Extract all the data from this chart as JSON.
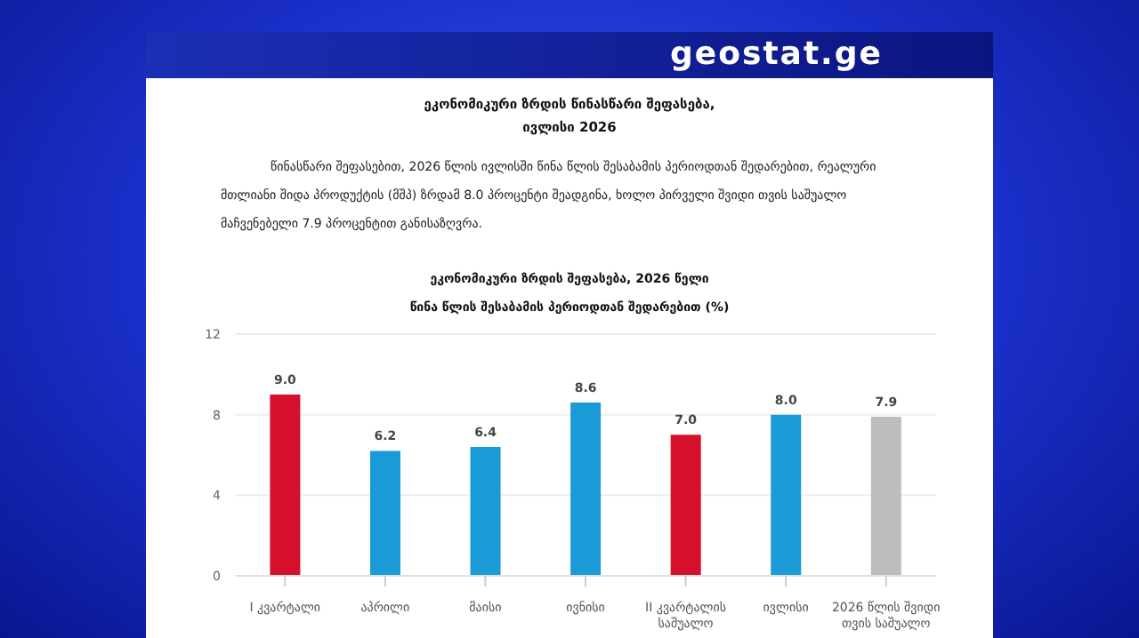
{
  "chart_data": {
    "type": "bar",
    "title": "ეკონომიკური ზრდის წინასწარი შეფასება,\nივლისი 2026",
    "subtitle": "ეკონომიკური ზრდის შეფასება, 2026 წელი\nწინა წლის შესაბამის პერიოდთან შედარებით (%)",
    "annotations": [
      "წინასწარი შეფასებით, 2026 წლის ივლისში წინა წლის შესაბამის პერიოდთან შედარებით, რეალური მთლიანი შიდა პროდუქტის (მშპ) ზრდამ 8.0 პროცენტი შეადგინა, ხოლო პირველი შვიდი თვის საშუალო მაჩვენებელი 7.9 პროცენტით განისაზღვრა.",
      "geostat.ge"
    ],
    "categories": [
      "I კვარტალი",
      "აპრილი",
      "მაისი",
      "ივნისი",
      "II კვარტალის საშუალო",
      "ივლისი",
      "2026 წლის შვიდი თვის საშუალო"
    ],
    "values": [
      9.0,
      6.2,
      6.4,
      8.6,
      7.0,
      8.0,
      7.9
    ],
    "colors": [
      "#d6102a",
      "#1a9ad6",
      "#1a9ad6",
      "#1a9ad6",
      "#d6102a",
      "#1a9ad6",
      "#bdbdbd"
    ],
    "value_labels": [
      "9.0",
      "6.2",
      "6.4",
      "8.6",
      "7.0",
      "8.0",
      "7.9"
    ],
    "ylim": [
      0,
      12
    ],
    "yticks": [
      0,
      4,
      8,
      12
    ],
    "grid": "y"
  }
}
